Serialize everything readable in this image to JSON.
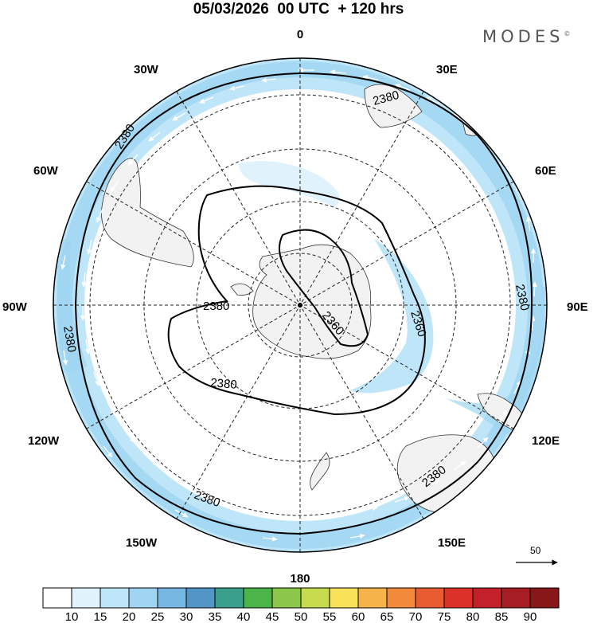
{
  "title": "05/03/2026  00 UTC  + 120 hrs",
  "brand": "MODES",
  "brand_mark": "©",
  "map": {
    "projection": "south-polar-stereographic",
    "longitude_labels": [
      {
        "text": "0",
        "lon": 0
      },
      {
        "text": "30E",
        "lon": 30
      },
      {
        "text": "60E",
        "lon": 60
      },
      {
        "text": "90E",
        "lon": 90
      },
      {
        "text": "120E",
        "lon": 120
      },
      {
        "text": "150E",
        "lon": 150
      },
      {
        "text": "180",
        "lon": 180
      },
      {
        "text": "150W",
        "lon": -150
      },
      {
        "text": "120W",
        "lon": -120
      },
      {
        "text": "90W",
        "lon": -90
      },
      {
        "text": "60W",
        "lon": -60
      },
      {
        "text": "30W",
        "lon": -30
      }
    ],
    "contour_labels": [
      {
        "text": "2380"
      },
      {
        "text": "2380"
      },
      {
        "text": "2380"
      },
      {
        "text": "2380"
      },
      {
        "text": "2380"
      },
      {
        "text": "2380"
      },
      {
        "text": "2380"
      },
      {
        "text": "2380"
      },
      {
        "text": "2360"
      },
      {
        "text": "2360"
      }
    ],
    "reference_vector": "50"
  },
  "colorbar": {
    "labels": [
      "10",
      "15",
      "20",
      "25",
      "30",
      "35",
      "40",
      "45",
      "50",
      "55",
      "60",
      "65",
      "70",
      "75",
      "80",
      "85",
      "90"
    ],
    "colors": [
      "#ffffff",
      "#e0f3fc",
      "#bfe6f8",
      "#9fd5f2",
      "#76b8e3",
      "#5295c7",
      "#3aa08c",
      "#4bb54a",
      "#8dc74a",
      "#c6dc4e",
      "#f7e25a",
      "#f6b349",
      "#f3893a",
      "#e95b30",
      "#dc3129",
      "#c4202a",
      "#a51e23",
      "#871719"
    ]
  }
}
